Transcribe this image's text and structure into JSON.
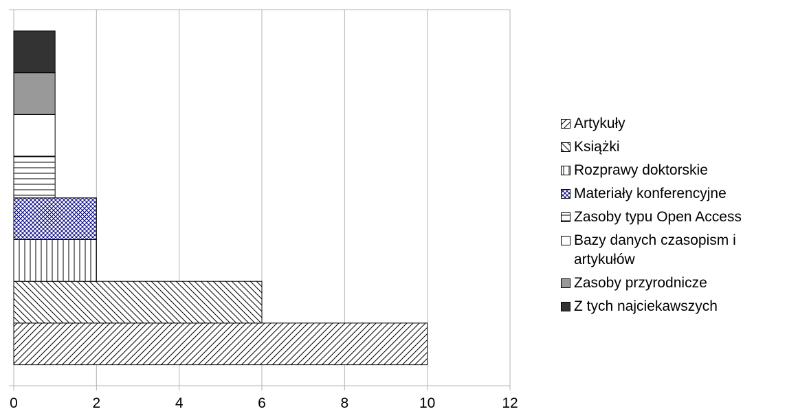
{
  "chart_data": {
    "type": "bar",
    "orientation": "horizontal",
    "stacked": true,
    "xlim": [
      0,
      12
    ],
    "x_ticks": [
      "0",
      "2",
      "4",
      "6",
      "8",
      "10",
      "12"
    ],
    "grid": true,
    "legend_position": "right",
    "series": [
      {
        "name": "Artykuły",
        "value": 10,
        "fill": "diag-up",
        "color": "#000000"
      },
      {
        "name": "Książki",
        "value": 6,
        "fill": "diag-down",
        "color": "#000000"
      },
      {
        "name": "Rozprawy doktorskie",
        "value": 2,
        "fill": "vertical",
        "color": "#000000"
      },
      {
        "name": "Materiały konferencyjne",
        "value": 2,
        "fill": "crosshatch",
        "color": "#000080"
      },
      {
        "name": "Zasoby typu Open Access",
        "value": 1,
        "fill": "horizontal",
        "color": "#000000"
      },
      {
        "name": "Bazy danych czasopism i artykułów",
        "value": 1,
        "fill": "solid",
        "color": "#ffffff"
      },
      {
        "name": "Zasoby przyrodnicze",
        "value": 1,
        "fill": "solid",
        "color": "#999999"
      },
      {
        "name": "Z tych najciekawszych",
        "value": 1,
        "fill": "solid",
        "color": "#333333"
      }
    ]
  }
}
